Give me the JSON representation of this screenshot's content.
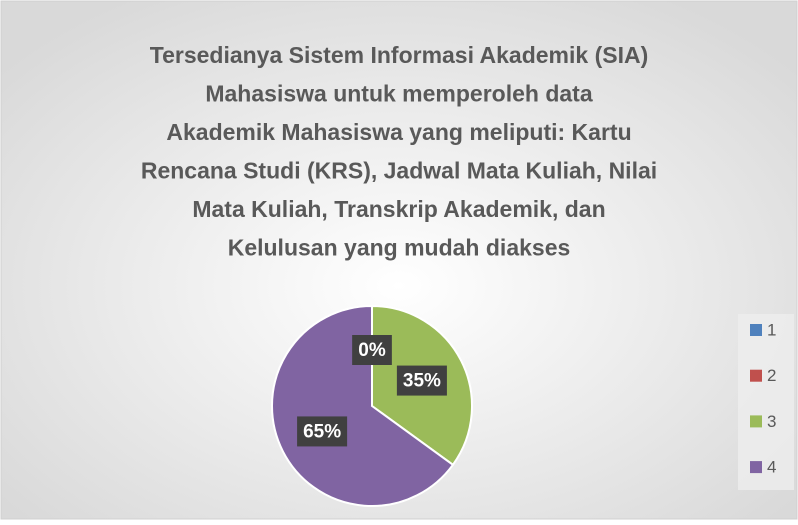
{
  "chart_data": {
    "type": "pie",
    "title": [
      "Tersedianya Sistem Informasi Akademik (SIA)",
      "Mahasiswa untuk memperoleh data",
      "Akademik Mahasiswa  yang meliputi: Kartu",
      "Rencana Studi (KRS), Jadwal Mata Kuliah, Nilai",
      "Mata Kuliah, Transkrip Akademik, dan",
      "Kelulusan yang mudah diakses"
    ],
    "categories": [
      "1",
      "2",
      "3",
      "4"
    ],
    "values": [
      0,
      0,
      35,
      65
    ],
    "value_labels": [
      "0%",
      "0%",
      "35%",
      "65%"
    ],
    "colors": [
      "#4f81bd",
      "#c0504d",
      "#9bbb59",
      "#8064a2"
    ],
    "legend": "right"
  }
}
